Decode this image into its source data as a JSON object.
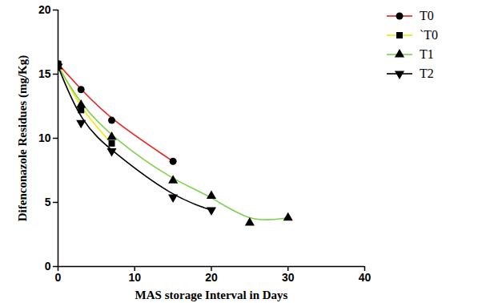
{
  "chart_data": {
    "type": "line",
    "x_label": "MAS storage Interval in Days",
    "y_label": "Difenconazole Residues (mg/Kg)",
    "xlim": [
      0,
      40
    ],
    "xticks": [
      0,
      10,
      20,
      30,
      40
    ],
    "ylim": [
      0,
      20
    ],
    "yticks": [
      0,
      5,
      10,
      15,
      20
    ],
    "grid": false,
    "legend": "right",
    "series": [
      {
        "name": "T0",
        "color": "#e8231c",
        "marker": "circle",
        "x": [
          0,
          3,
          7,
          15
        ],
        "values": [
          15.8,
          13.8,
          11.4,
          8.2
        ]
      },
      {
        "name": "`T0",
        "color": "#f2e600",
        "marker": "square",
        "x": [
          0,
          3,
          7
        ],
        "values": [
          15.8,
          12.2,
          9.6
        ]
      },
      {
        "name": "T1",
        "color": "#7ed14f",
        "marker": "triangle-up",
        "x": [
          0,
          3,
          7,
          15,
          20,
          25,
          30
        ],
        "values": [
          15.6,
          12.6,
          10.1,
          6.7,
          5.5,
          3.4,
          3.8
        ]
      },
      {
        "name": "T2",
        "color": "#000000",
        "marker": "triangle-down",
        "x": [
          0,
          3,
          7,
          15,
          20
        ],
        "values": [
          15.6,
          11.2,
          9.0,
          5.4,
          4.4
        ]
      }
    ]
  }
}
